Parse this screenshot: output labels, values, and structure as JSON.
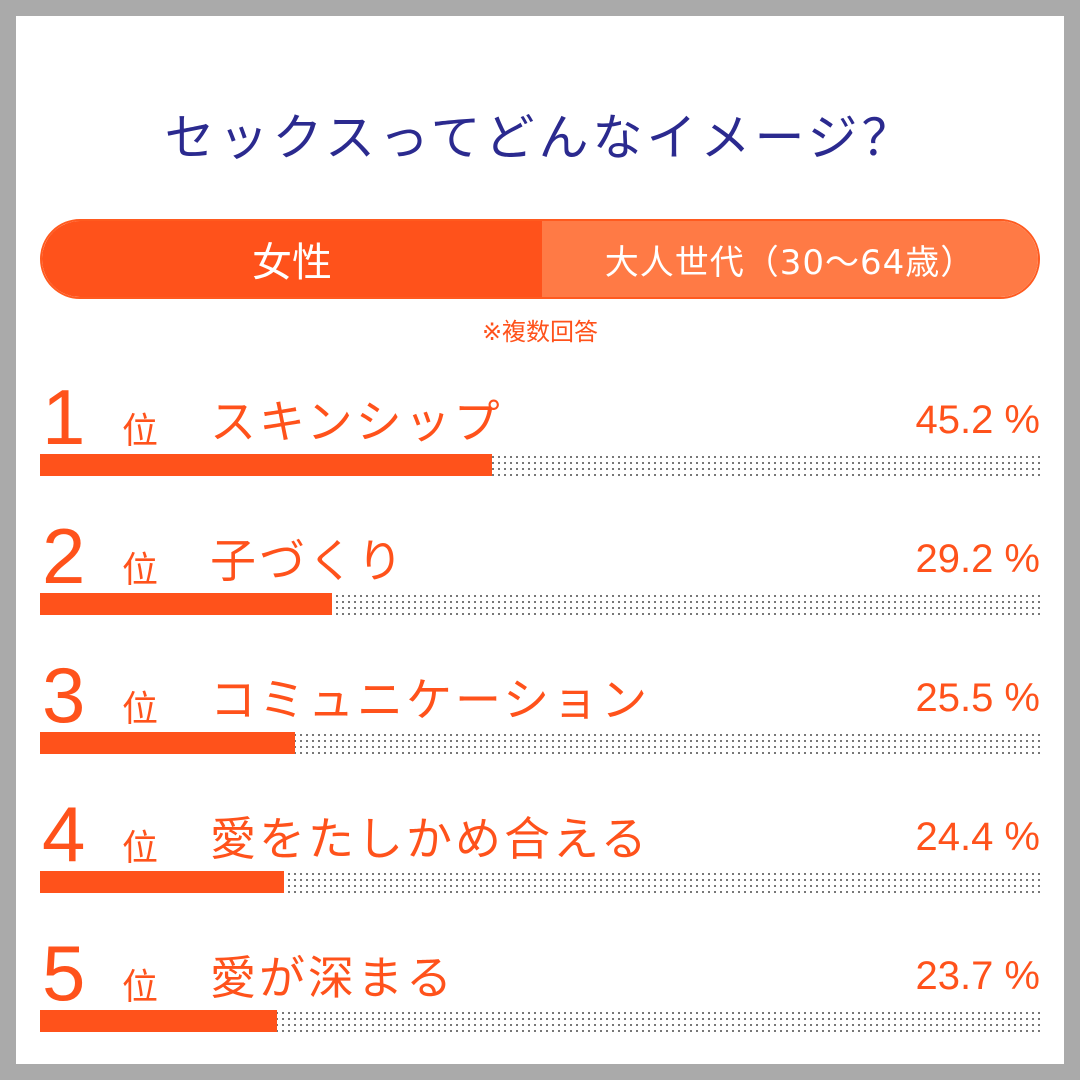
{
  "chart_data": {
    "type": "bar",
    "title": "セックスってどんなイメージ？",
    "legend": {
      "gender": "女性",
      "generation": "大人世代（30〜64歳）"
    },
    "note": "※複数回答",
    "ylim": [
      0,
      100
    ],
    "rank_suffix": "位",
    "pct_suffix": "%",
    "items": [
      {
        "rank": "1",
        "label": "スキンシップ",
        "value": 45.2,
        "value_text": "45.2"
      },
      {
        "rank": "2",
        "label": "子づくり",
        "value": 29.2,
        "value_text": "29.2"
      },
      {
        "rank": "3",
        "label": "コミュニケーション",
        "value": 25.5,
        "value_text": "25.5"
      },
      {
        "rank": "4",
        "label": "愛をたしかめ合える",
        "value": 24.4,
        "value_text": "24.4"
      },
      {
        "rank": "5",
        "label": "愛が深まる",
        "value": 23.7,
        "value_text": "23.7"
      }
    ]
  },
  "colors": {
    "title": "#2b2a8f",
    "accent": "#ff521b",
    "accent_light": "#ff7a45"
  }
}
